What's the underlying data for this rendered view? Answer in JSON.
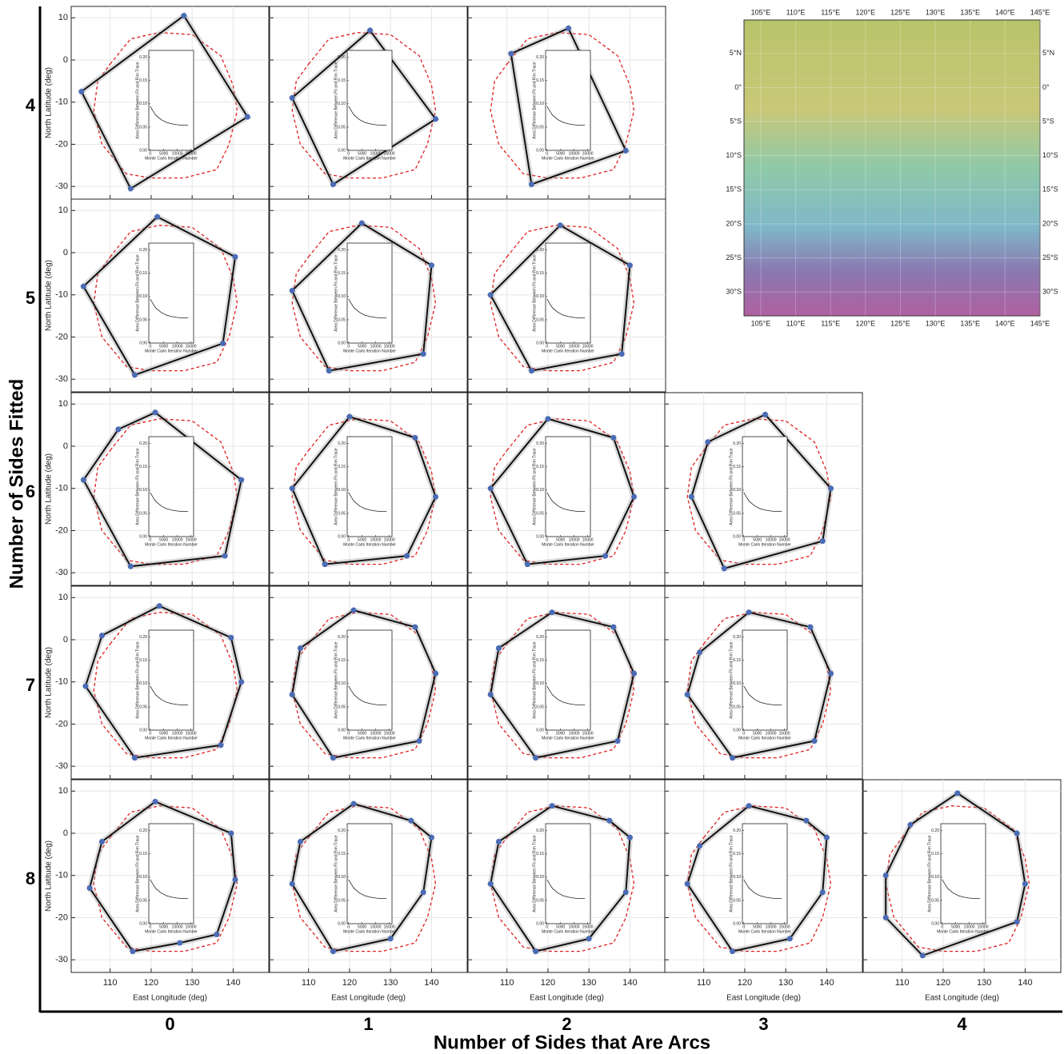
{
  "chart_data": {
    "type": "polygon_grid",
    "y_title": "Number of Sides Fitted",
    "x_title": "Number of Sides that Are Arcs",
    "column_values": [
      0,
      1,
      2,
      3,
      4
    ],
    "x_label": "East Longitude (deg)",
    "y_label": "North Latitude (deg)",
    "xlim": [
      100.5,
      148.7
    ],
    "ylim": [
      -33,
      12.7
    ],
    "xticks": [
      110,
      120,
      130,
      140
    ],
    "yticks": [
      -30,
      -20,
      -10,
      0,
      10
    ],
    "fit_color": "#111111",
    "rim_color": "#e02020",
    "vertex_color": "#4a6bb5",
    "rim_lon": [
      110,
      115,
      122,
      130,
      137,
      140,
      141,
      139,
      136,
      128,
      120,
      114,
      108,
      106,
      107
    ],
    "rim_lat": [
      -1,
      5,
      6.5,
      6,
      1,
      -6,
      -12,
      -20,
      -26,
      -28,
      -28,
      -27,
      -20,
      -12,
      -5
    ],
    "rows": [
      {
        "sides": 4,
        "panels": [
          {
            "vertices_lon": [
              128,
              143.5,
              115,
              103
            ],
            "vertices_lat": [
              10.5,
              -13.5,
              -30.5,
              -7.5
            ]
          },
          {
            "vertices_lon": [
              125,
              141,
              116,
              106
            ],
            "vertices_lat": [
              7,
              -14,
              -29.5,
              -9
            ]
          },
          {
            "vertices_lon": [
              111,
              125,
              139,
              116
            ],
            "vertices_lat": [
              1.5,
              7.5,
              -21.5,
              -29.5
            ]
          }
        ]
      },
      {
        "sides": 5,
        "panels": [
          {
            "vertices_lon": [
              121.5,
              140.5,
              137.5,
              116,
              103.5
            ],
            "vertices_lat": [
              8.5,
              -1,
              -21.5,
              -29,
              -8
            ]
          },
          {
            "vertices_lon": [
              123,
              140,
              138,
              115,
              106
            ],
            "vertices_lat": [
              7,
              -3,
              -24,
              -28,
              -9
            ]
          },
          {
            "vertices_lon": [
              123,
              140,
              138,
              116,
              106
            ],
            "vertices_lat": [
              6.5,
              -3,
              -24,
              -28,
              -10
            ]
          }
        ]
      },
      {
        "sides": 6,
        "panels": [
          {
            "vertices_lon": [
              121,
              142,
              138,
              115,
              103.5,
              112
            ],
            "vertices_lat": [
              8,
              -8,
              -26,
              -28.5,
              -8,
              4
            ]
          },
          {
            "vertices_lon": [
              120,
              136,
              141,
              134,
              114,
              106
            ],
            "vertices_lat": [
              7,
              2,
              -12,
              -26,
              -28,
              -10
            ]
          },
          {
            "vertices_lon": [
              120,
              136,
              141,
              134,
              115,
              106
            ],
            "vertices_lat": [
              6.5,
              2,
              -12,
              -26,
              -28,
              -10
            ]
          },
          {
            "vertices_lon": [
              111,
              125,
              141,
              139,
              115,
              107
            ],
            "vertices_lat": [
              1,
              7.5,
              -10,
              -22.5,
              -29,
              -12
            ]
          }
        ]
      },
      {
        "sides": 7,
        "panels": [
          {
            "vertices_lon": [
              122,
              139.5,
              142,
              137,
              116,
              104,
              108
            ],
            "vertices_lat": [
              8,
              0.5,
              -10,
              -25,
              -28,
              -11,
              1
            ]
          },
          {
            "vertices_lon": [
              121,
              136,
              141,
              137,
              116,
              106,
              108
            ],
            "vertices_lat": [
              7,
              3,
              -8,
              -24,
              -28,
              -13,
              -2
            ]
          },
          {
            "vertices_lon": [
              121,
              136,
              141,
              137,
              117,
              106,
              108
            ],
            "vertices_lat": [
              6.5,
              3,
              -8,
              -24,
              -28,
              -13,
              -2
            ]
          },
          {
            "vertices_lon": [
              121,
              136,
              141,
              137,
              117,
              106,
              109
            ],
            "vertices_lat": [
              6.5,
              3,
              -8,
              -24,
              -28,
              -13,
              -3
            ]
          }
        ]
      },
      {
        "sides": 8,
        "panels": [
          {
            "vertices_lon": [
              121,
              139.5,
              140.5,
              136,
              127,
              115.5,
              105,
              108
            ],
            "vertices_lat": [
              7.5,
              0,
              -11,
              -24,
              -26,
              -28,
              -13,
              -2
            ]
          },
          {
            "vertices_lon": [
              121,
              135,
              140,
              138,
              130,
              116,
              106,
              108
            ],
            "vertices_lat": [
              7,
              3,
              -1,
              -14,
              -25,
              -28,
              -12,
              -2
            ]
          },
          {
            "vertices_lon": [
              121,
              135,
              140,
              139,
              130,
              117,
              106,
              108
            ],
            "vertices_lat": [
              6.5,
              3,
              -1,
              -14,
              -25,
              -28,
              -12,
              -2
            ]
          },
          {
            "vertices_lon": [
              121,
              135,
              140,
              139,
              131,
              117,
              106,
              109
            ],
            "vertices_lat": [
              6.5,
              3,
              -1,
              -14,
              -25,
              -28,
              -12,
              -3
            ]
          },
          {
            "vertices_lon": [
              112,
              123.5,
              138,
              140,
              138,
              115,
              106,
              106
            ],
            "vertices_lat": [
              2,
              9.5,
              0,
              -12,
              -21,
              -29,
              -20,
              -10
            ]
          }
        ]
      }
    ],
    "inset": {
      "x_label": "Monte Carlo Iteration Number",
      "y_label": "Area Difference Between Fit and Rim Trace",
      "xlim": [
        -500,
        16000
      ],
      "ylim": [
        0,
        0.215
      ],
      "xticks": [
        0,
        5000,
        10000,
        15000
      ],
      "yticks": [
        {
          "value": 0,
          "label": "0.00"
        },
        {
          "value": 0.05,
          "label": "0.05"
        },
        {
          "value": 0.1,
          "label": "0.10"
        },
        {
          "value": 0.15,
          "label": "0.15"
        },
        {
          "value": 0.2,
          "label": "0.20"
        }
      ],
      "trace_x": [
        0,
        1000,
        2000,
        4000,
        6000,
        8000,
        10000,
        12000,
        14000
      ],
      "trace_y": [
        0.095,
        0.085,
        0.076,
        0.066,
        0.06,
        0.057,
        0.055,
        0.054,
        0.054
      ]
    },
    "map": {
      "xlim": [
        102.6,
        145
      ],
      "ylim": [
        -33.5,
        9.9
      ],
      "xticks": [
        {
          "value": 105,
          "label": "105°E"
        },
        {
          "value": 110,
          "label": "110°E"
        },
        {
          "value": 115,
          "label": "115°E"
        },
        {
          "value": 120,
          "label": "120°E"
        },
        {
          "value": 125,
          "label": "125°E"
        },
        {
          "value": 130,
          "label": "130°E"
        },
        {
          "value": 135,
          "label": "135°E"
        },
        {
          "value": 140,
          "label": "140°E"
        },
        {
          "value": 145,
          "label": "145°E"
        }
      ],
      "yticks": [
        {
          "value": 5,
          "label": "5°N"
        },
        {
          "value": 0,
          "label": "0°"
        },
        {
          "value": -5,
          "label": "5°S"
        },
        {
          "value": -10,
          "label": "10°S"
        },
        {
          "value": -15,
          "label": "15°S"
        },
        {
          "value": -20,
          "label": "20°S"
        },
        {
          "value": -25,
          "label": "25°S"
        },
        {
          "value": -30,
          "label": "30°S"
        }
      ]
    }
  }
}
